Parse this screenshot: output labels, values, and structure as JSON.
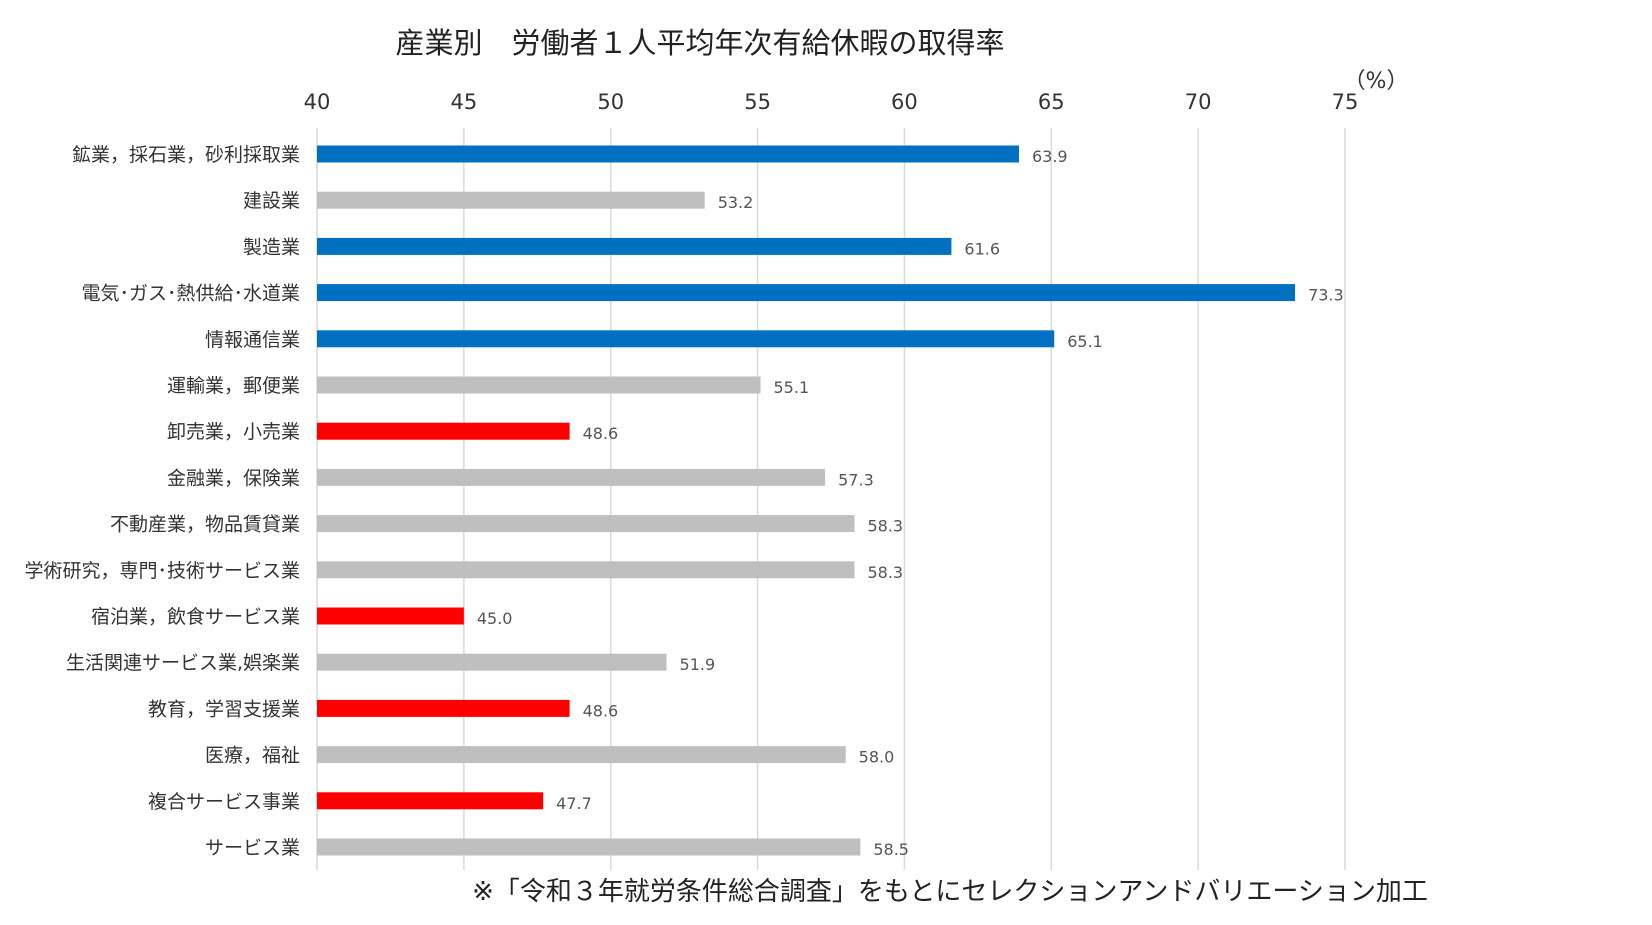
{
  "chart_data": {
    "type": "bar",
    "orientation": "horizontal",
    "title": "産業別　労働者１人平均年次有給休暇の取得率",
    "unit_label": "（%）",
    "xlim": [
      40,
      75
    ],
    "xticks": [
      "40",
      "45",
      "50",
      "55",
      "60",
      "65",
      "70",
      "75"
    ],
    "grid": true,
    "categories": [
      "鉱業，採石業，砂利採取業",
      "建設業",
      "製造業",
      "電気･ガス･熱供給･水道業",
      "情報通信業",
      "運輸業，郵便業",
      "卸売業，小売業",
      "金融業，保険業",
      "不動産業，物品賃貸業",
      "学術研究，専門･技術サービス業",
      "宿泊業，飲食サービス業",
      "生活関連サービス業,娯楽業",
      "教育，学習支援業",
      "医療，福祉",
      "複合サービス事業",
      "サービス業"
    ],
    "values": [
      63.9,
      53.2,
      61.6,
      73.3,
      65.1,
      55.1,
      48.6,
      57.3,
      58.3,
      58.3,
      45.0,
      51.9,
      48.6,
      58.0,
      47.7,
      58.5
    ],
    "value_labels": [
      "63.9",
      "53.2",
      "61.6",
      "73.3",
      "65.1",
      "55.1",
      "48.6",
      "57.3",
      "58.3",
      "58.3",
      "45.0",
      "51.9",
      "48.6",
      "58.0",
      "47.7",
      "58.5"
    ],
    "bar_color_keys": [
      "blue",
      "gray",
      "blue",
      "blue",
      "blue",
      "gray",
      "red",
      "gray",
      "gray",
      "gray",
      "red",
      "gray",
      "red",
      "gray",
      "red",
      "gray"
    ],
    "colors": {
      "blue": "#0070C0",
      "gray": "#BFBFBF",
      "red": "#FF0000"
    },
    "footnote": "※「令和３年就労条件総合調査」をもとにセレクションアンドバリエーション加工"
  }
}
